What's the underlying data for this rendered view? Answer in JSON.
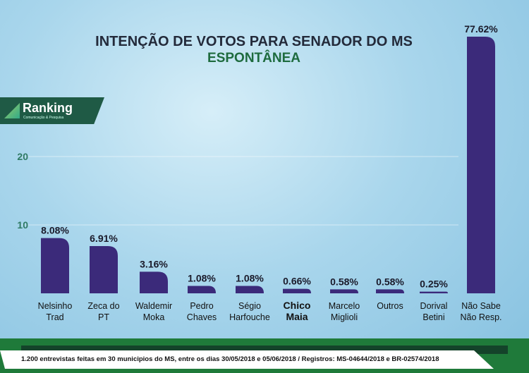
{
  "header": {
    "title": "INTENÇÃO DE VOTOS PARA SENADOR DO MS",
    "subtitle": "ESPONTÂNEA"
  },
  "logo": {
    "name": "Ranking",
    "tagline": "Comunicação & Pesquisa"
  },
  "footer": {
    "text": "1.200 entrevistas feitas em 30 municipios do MS, entre os dias 30/05/2018 e 05/06/2018 / Registros: MS-04644/2018 e BR-02574/2018"
  },
  "colors": {
    "bar": "#3b2a7a",
    "title": "#232a3a",
    "subtitle": "#1e6b3e",
    "footer": "#1f7a3a"
  },
  "chart_data": {
    "type": "bar",
    "title": "INTENÇÃO DE VOTOS PARA SENADOR DO MS",
    "subtitle": "ESPONTÂNEA",
    "categories": [
      [
        "Nelsinho",
        "Trad"
      ],
      [
        "Zeca do",
        "PT"
      ],
      [
        "Waldemir",
        "Moka"
      ],
      [
        "Pedro",
        "Chaves"
      ],
      [
        "Ségio",
        "Harfouche"
      ],
      [
        "Chico",
        "Maia"
      ],
      [
        "Marcelo",
        "Miglioli"
      ],
      [
        "Outros"
      ],
      [
        "Dorival",
        "Betini"
      ],
      [
        "Não Sabe",
        "Não Resp."
      ]
    ],
    "values": [
      8.08,
      6.91,
      3.16,
      1.08,
      1.08,
      0.66,
      0.58,
      0.58,
      0.25,
      77.62
    ],
    "labels": [
      "8.08%",
      "6.91%",
      "3.16%",
      "1.08%",
      "1.08%",
      "0.66%",
      "0.58%",
      "0.58%",
      "0.25%",
      "77.62%"
    ],
    "yticks": [
      10,
      20
    ],
    "grid": true,
    "axis_break_on_last_bar": true
  }
}
